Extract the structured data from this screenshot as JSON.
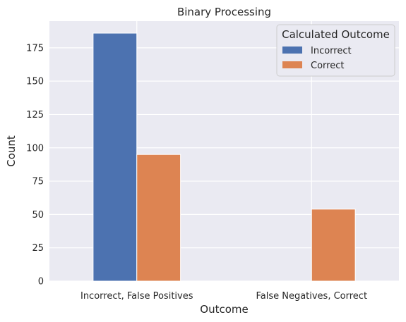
{
  "chart_data": {
    "type": "bar",
    "title": "Binary Processing",
    "xlabel": "Outcome",
    "ylabel": "Count",
    "categories": [
      "Incorrect, False Positives",
      "False Negatives, Correct"
    ],
    "series": [
      {
        "name": "Incorrect",
        "values": [
          186,
          0
        ],
        "color": "#4c72b0"
      },
      {
        "name": "Correct",
        "values": [
          95,
          54
        ],
        "color": "#dd8452"
      }
    ],
    "ylim": [
      0,
      195
    ],
    "yticks": [
      0,
      25,
      50,
      75,
      100,
      125,
      150,
      175
    ],
    "grid": true,
    "legend": {
      "title": "Calculated Outcome",
      "placement": "top-right"
    }
  }
}
